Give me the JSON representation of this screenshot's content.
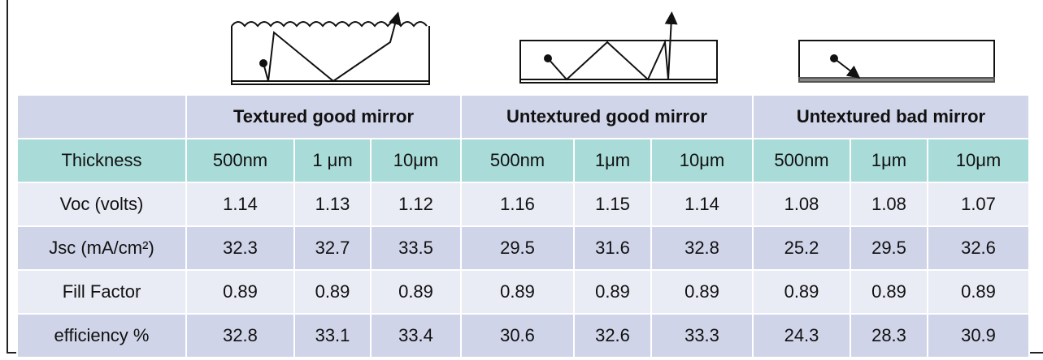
{
  "table": {
    "groups": [
      "Textured good mirror",
      "Untextured good mirror",
      "Untextured bad mirror"
    ],
    "rows": [
      [
        "Thickness",
        "500nm",
        "1 μm",
        "10μm",
        "500nm",
        "1μm",
        "10μm",
        "500nm",
        "1μm",
        "10μm"
      ],
      [
        "Voc (volts)",
        "1.14",
        "1.13",
        "1.12",
        "1.16",
        "1.15",
        "1.14",
        "1.08",
        "1.08",
        "1.07"
      ],
      [
        "Jsc (mA/cm²)",
        "32.3",
        "32.7",
        "33.5",
        "29.5",
        "31.6",
        "32.8",
        "25.2",
        "29.5",
        "32.6"
      ],
      [
        "Fill Factor",
        "0.89",
        "0.89",
        "0.89",
        "0.89",
        "0.89",
        "0.89",
        "0.89",
        "0.89",
        "0.89"
      ],
      [
        "efficiency %",
        "32.8",
        "33.1",
        "33.4",
        "30.6",
        "32.6",
        "33.3",
        "24.3",
        "28.3",
        "30.9"
      ]
    ]
  }
}
